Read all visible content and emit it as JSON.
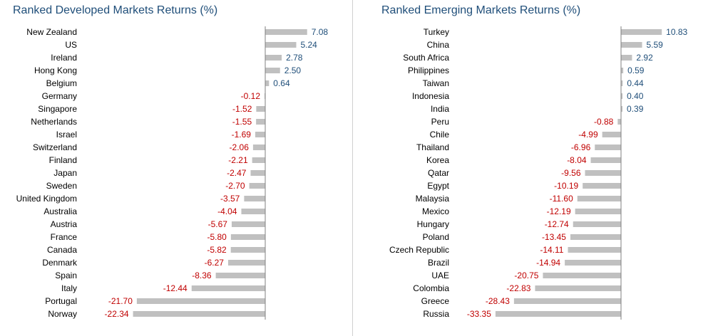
{
  "colors": {
    "title": "#1f4e79",
    "bar": "#c0c0c0",
    "positive_label": "#1f4e79",
    "negative_label": "#c00000",
    "axis": "#808080",
    "divider": "#d0d0d0"
  },
  "chart_data": [
    {
      "type": "bar",
      "orientation": "horizontal",
      "title": "Ranked Developed Markets Returns (%)",
      "categories": [
        "New Zealand",
        "US",
        "Ireland",
        "Hong Kong",
        "Belgium",
        "Germany",
        "Singapore",
        "Netherlands",
        "Israel",
        "Switzerland",
        "Finland",
        "Japan",
        "Sweden",
        "United Kingdom",
        "Australia",
        "Austria",
        "France",
        "Canada",
        "Denmark",
        "Spain",
        "Italy",
        "Portugal",
        "Norway"
      ],
      "values": [
        7.08,
        5.24,
        2.78,
        2.5,
        0.64,
        -0.12,
        -1.52,
        -1.55,
        -1.69,
        -2.06,
        -2.21,
        -2.47,
        -2.7,
        -3.57,
        -4.04,
        -5.67,
        -5.8,
        -5.82,
        -6.27,
        -8.36,
        -12.44,
        -21.7,
        -22.34
      ],
      "value_labels": [
        "7.08",
        "5.24",
        "2.78",
        "2.50",
        "0.64",
        "-0.12",
        "-1.52",
        "-1.55",
        "-1.69",
        "-2.06",
        "-2.21",
        "-2.47",
        "-2.70",
        "-3.57",
        "-4.04",
        "-5.67",
        "-5.80",
        "-5.82",
        "-6.27",
        "-8.36",
        "-12.44",
        "-21.70",
        "-22.34"
      ],
      "sorted": "descending",
      "grid": false,
      "legend": "none"
    },
    {
      "type": "bar",
      "orientation": "horizontal",
      "title": "Ranked Emerging Markets Returns (%)",
      "categories": [
        "Turkey",
        "China",
        "South Africa",
        "Philippines",
        "Taiwan",
        "Indonesia",
        "India",
        "Peru",
        "Chile",
        "Thailand",
        "Korea",
        "Qatar",
        "Egypt",
        "Malaysia",
        "Mexico",
        "Hungary",
        "Poland",
        "Czech Republic",
        "Brazil",
        "UAE",
        "Colombia",
        "Greece",
        "Russia"
      ],
      "values": [
        10.83,
        5.59,
        2.92,
        0.59,
        0.44,
        0.4,
        0.39,
        -0.88,
        -4.99,
        -6.96,
        -8.04,
        -9.56,
        -10.19,
        -11.6,
        -12.19,
        -12.74,
        -13.45,
        -14.11,
        -14.94,
        -20.75,
        -22.83,
        -28.43,
        -33.35
      ],
      "value_labels": [
        "10.83",
        "5.59",
        "2.92",
        "0.59",
        "0.44",
        "0.40",
        "0.39",
        "-0.88",
        "-4.99",
        "-6.96",
        "-8.04",
        "-9.56",
        "-10.19",
        "-11.60",
        "-12.19",
        "-12.74",
        "-13.45",
        "-14.11",
        "-14.94",
        "-20.75",
        "-22.83",
        "-28.43",
        "-33.35"
      ],
      "sorted": "descending",
      "grid": false,
      "legend": "none"
    }
  ]
}
